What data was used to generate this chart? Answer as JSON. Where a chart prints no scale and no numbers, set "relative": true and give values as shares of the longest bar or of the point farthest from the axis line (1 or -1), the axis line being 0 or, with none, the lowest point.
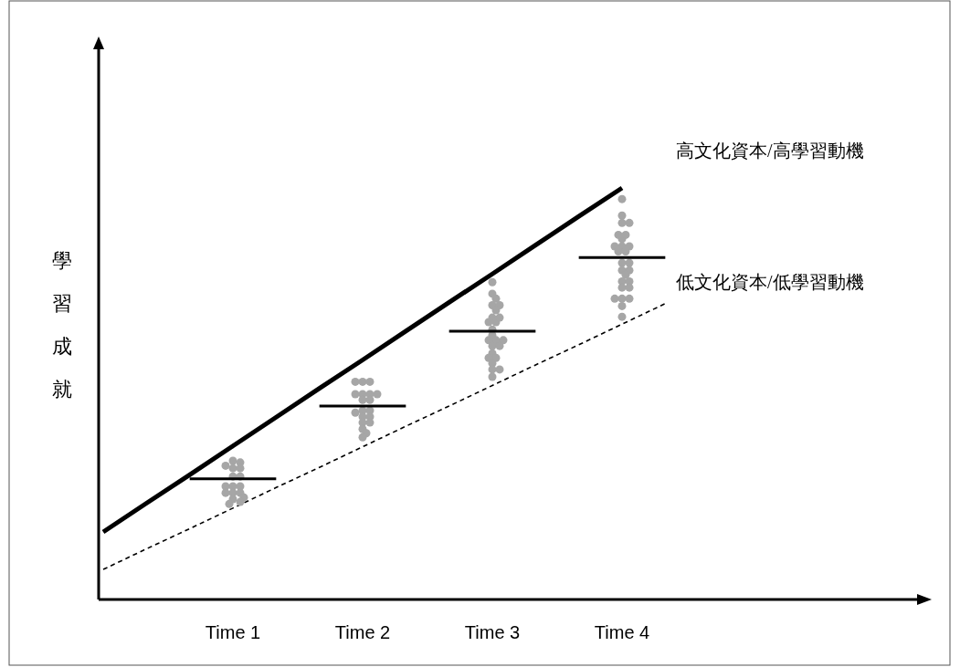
{
  "chart_data": {
    "type": "line",
    "relative": true,
    "ylabel": "學習成就",
    "categories": [
      null,
      null,
      null,
      "Time 1",
      null,
      null,
      "Time 2",
      null,
      null,
      "Time 3",
      null,
      null,
      "Time 4",
      null,
      null,
      null,
      null,
      null,
      null
    ],
    "grid": false,
    "legend": false,
    "series": [
      {
        "type": "line",
        "name": "高文化資本/高學習動機",
        "color": "#000000",
        "line_style": "solid",
        "marker": "none",
        "values": [
          0.164,
          0.234,
          0.303,
          0.373,
          0.443,
          0.513,
          0.582,
          0.652,
          0.722,
          0.791,
          0.861,
          0.931,
          1.0,
          null,
          null,
          null,
          null,
          null,
          null
        ]
      },
      {
        "type": "line",
        "name": "低文化資本/低學習動機",
        "color": "#000000",
        "line_style": "dashed",
        "marker": "none",
        "values": [
          0.073,
          0.123,
          0.172,
          0.222,
          0.272,
          0.321,
          0.371,
          0.421,
          0.47,
          0.52,
          0.57,
          0.619,
          0.669,
          0.719,
          null,
          null,
          null,
          null,
          null
        ]
      },
      {
        "type": "scatter",
        "color": "#a6a6a6",
        "marker": "circle",
        "x": [
          "Time 1",
          "Time 1",
          "Time 1",
          "Time 1",
          "Time 1",
          "Time 1",
          "Time 1",
          "Time 1",
          "Time 1",
          "Time 1",
          "Time 1",
          "Time 1",
          "Time 1",
          "Time 1",
          "Time 1",
          "Time 1",
          "Time 1",
          "Time 2",
          "Time 2",
          "Time 2",
          "Time 2",
          "Time 2",
          "Time 2",
          "Time 2",
          "Time 2",
          "Time 2",
          "Time 2",
          "Time 2",
          "Time 2",
          "Time 2",
          "Time 2",
          "Time 2",
          "Time 2",
          "Time 2",
          "Time 2",
          "Time 2",
          "Time 3",
          "Time 3",
          "Time 3",
          "Time 3",
          "Time 3",
          "Time 3",
          "Time 3",
          "Time 3",
          "Time 3",
          "Time 3",
          "Time 3",
          "Time 3",
          "Time 3",
          "Time 3",
          "Time 3",
          "Time 3",
          "Time 3",
          "Time 3",
          "Time 3",
          "Time 3",
          "Time 3",
          "Time 3",
          "Time 3",
          "Time 3",
          "Time 4",
          "Time 4",
          "Time 4",
          "Time 4",
          "Time 4",
          "Time 4",
          "Time 4",
          "Time 4",
          "Time 4",
          "Time 4",
          "Time 4",
          "Time 4",
          "Time 4",
          "Time 4",
          "Time 4",
          "Time 4",
          "Time 4",
          "Time 4",
          "Time 4",
          "Time 4",
          "Time 4",
          "Time 4",
          "Time 4",
          "Time 4",
          "Time 4",
          "Time 4"
        ],
        "values": [
          0.337,
          0.333,
          0.319,
          0.319,
          0.325,
          0.299,
          0.299,
          0.275,
          0.275,
          0.275,
          0.259,
          0.259,
          0.259,
          0.244,
          0.248,
          0.237,
          0.232,
          0.529,
          0.529,
          0.529,
          0.499,
          0.499,
          0.499,
          0.499,
          0.485,
          0.485,
          0.459,
          0.459,
          0.454,
          0.444,
          0.444,
          0.43,
          0.43,
          0.414,
          0.404,
          0.394,
          0.771,
          0.743,
          0.731,
          0.715,
          0.715,
          0.703,
          0.685,
          0.674,
          0.674,
          0.685,
          0.656,
          0.642,
          0.63,
          0.63,
          0.63,
          0.616,
          0.616,
          0.598,
          0.587,
          0.587,
          0.574,
          0.559,
          0.559,
          0.541,
          0.973,
          0.933,
          0.915,
          0.915,
          0.876,
          0.886,
          0.886,
          0.858,
          0.858,
          0.858,
          0.846,
          0.846,
          0.818,
          0.818,
          0.8,
          0.8,
          0.789,
          0.773,
          0.773,
          0.758,
          0.758,
          0.731,
          0.731,
          0.731,
          0.713,
          0.687
        ]
      },
      {
        "type": "line",
        "color": "#000000",
        "line_style": "solid",
        "marker": "none",
        "values": [
          null,
          null,
          0.293,
          0.293,
          0.293,
          null,
          null,
          null,
          null,
          null,
          null,
          null,
          null,
          null,
          null,
          null,
          null,
          null,
          null
        ]
      },
      {
        "type": "line",
        "color": "#000000",
        "line_style": "solid",
        "marker": "none",
        "values": [
          null,
          null,
          null,
          null,
          null,
          0.47,
          0.47,
          0.47,
          null,
          null,
          null,
          null,
          null,
          null,
          null,
          null,
          null,
          null,
          null
        ]
      },
      {
        "type": "line",
        "color": "#000000",
        "line_style": "solid",
        "marker": "none",
        "values": [
          null,
          null,
          null,
          null,
          null,
          null,
          null,
          null,
          0.652,
          0.652,
          0.652,
          null,
          null,
          null,
          null,
          null,
          null,
          null,
          null
        ]
      },
      {
        "type": "line",
        "color": "#000000",
        "line_style": "solid",
        "marker": "none",
        "values": [
          null,
          null,
          null,
          null,
          null,
          null,
          null,
          null,
          null,
          null,
          null,
          0.831,
          0.831,
          0.831,
          null,
          null,
          null,
          null,
          null
        ]
      }
    ]
  }
}
